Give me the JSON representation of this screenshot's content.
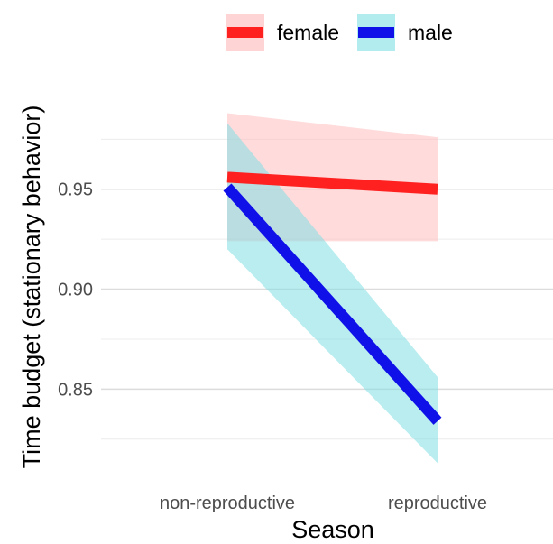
{
  "chart_data": {
    "type": "line",
    "title": "",
    "xlabel": "Season",
    "ylabel": "Time budget (stationary behavior)",
    "categories": [
      "non-reproductive",
      "reproductive"
    ],
    "ylim": [
      0.81,
      0.995
    ],
    "y_ticks": [
      0.85,
      0.9,
      0.95
    ],
    "y_tick_labels": [
      "0.85",
      "0.90",
      "0.95"
    ],
    "y_minor_gridlines": [
      0.825,
      0.875,
      0.925,
      0.975
    ],
    "grid": true,
    "legend": {
      "position": "top",
      "entries": [
        "female",
        "male"
      ]
    },
    "series": [
      {
        "name": "female",
        "color": "#ff2020",
        "band_color": "#ffb8b8",
        "values": [
          0.956,
          0.95
        ],
        "lower": [
          0.924,
          0.924
        ],
        "upper": [
          0.988,
          0.976
        ]
      },
      {
        "name": "male",
        "color": "#1010e8",
        "band_color": "#7fdfe4",
        "values": [
          0.951,
          0.834
        ],
        "lower": [
          0.92,
          0.813
        ],
        "upper": [
          0.983,
          0.856
        ]
      }
    ]
  }
}
